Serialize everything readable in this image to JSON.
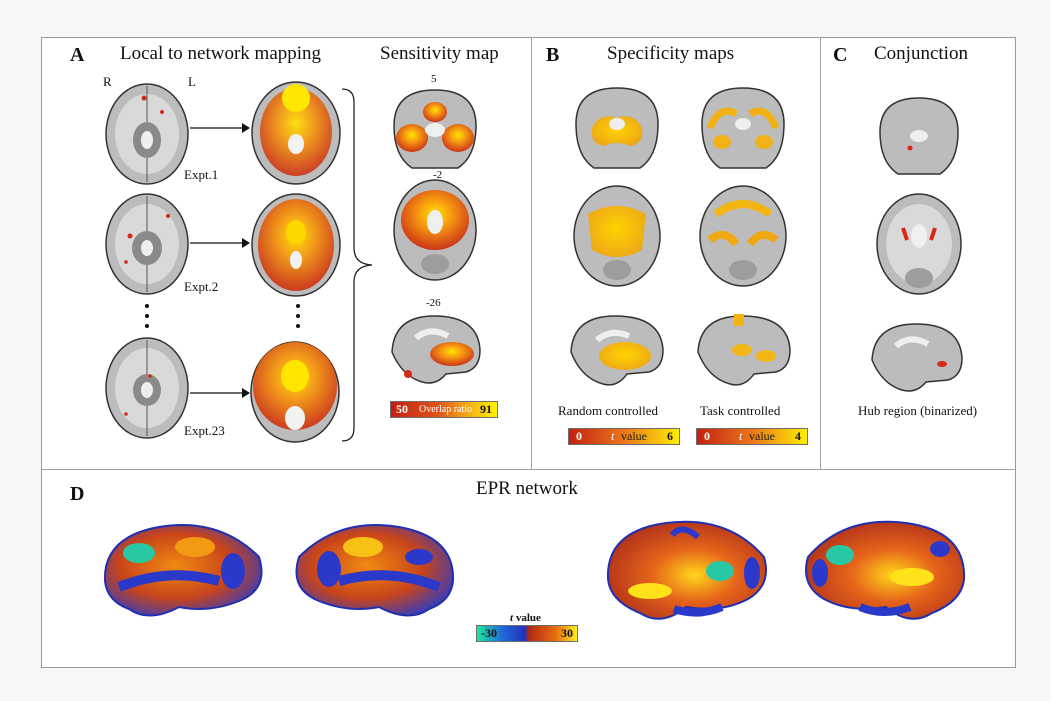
{
  "panels": {
    "a": {
      "letter": "A",
      "title": "Local to network mapping",
      "hemi_right": "R",
      "hemi_left": "L",
      "experiments": [
        "Expt.1",
        "Expt.2",
        "Expt.23"
      ]
    },
    "sensitivity": {
      "title": "Sensitivity map",
      "slice_coords": [
        "5",
        "-2",
        "-26"
      ],
      "colorbar": {
        "min": "50",
        "label": "Overlap ratio",
        "max": "91"
      }
    },
    "b": {
      "letter": "B",
      "title": "Specificity maps",
      "captions": [
        "Random controlled",
        "Task controlled"
      ],
      "colorbars": [
        {
          "min": "0",
          "label_italic": "t",
          "label_rest": "value",
          "max": "6"
        },
        {
          "min": "0",
          "label_italic": "t",
          "label_rest": "value",
          "max": "4"
        }
      ]
    },
    "c": {
      "letter": "C",
      "title": "Conjunction",
      "caption": "Hub region (binarized)"
    },
    "d": {
      "letter": "D",
      "title": "EPR network",
      "colorbar": {
        "label_italic": "t",
        "label_rest": "value",
        "min": "-30",
        "max": "30"
      }
    }
  },
  "colors": {
    "overlay_red": "#d23a1a",
    "overlay_yellow": "#ffe200",
    "overlay_orange": "#f39a12",
    "network_blue": "#2a39c9",
    "network_teal": "#27c8a3",
    "brain_gray": "#bdbdbd"
  },
  "icons": {
    "bracket": "right-curly-brace",
    "arrow": "arrow-right"
  }
}
